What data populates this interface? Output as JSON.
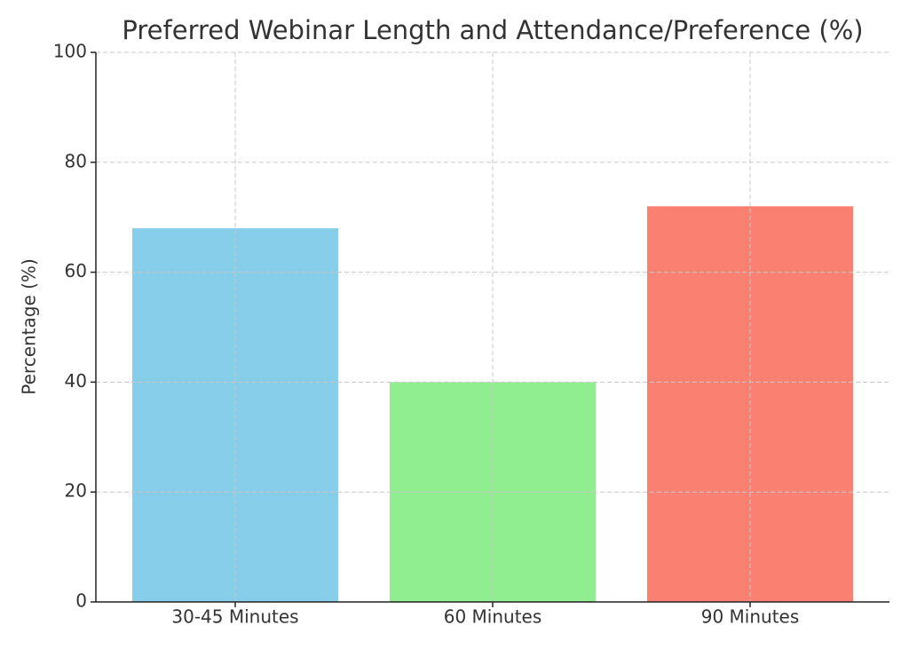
{
  "chart_data": {
    "type": "bar",
    "title": "Preferred Webinar Length and Attendance/Preference (%)",
    "y_label": "Percentage (%)",
    "categories": [
      "30-45 Minutes",
      "60 Minutes",
      "90 Minutes"
    ],
    "values": [
      68,
      40,
      72
    ],
    "colors": [
      "#87ceeb",
      "#90ee90",
      "#fa8072"
    ],
    "ylim": [
      0,
      100
    ],
    "yticks": [
      0,
      20,
      40,
      60,
      80,
      100
    ],
    "grid": true
  }
}
